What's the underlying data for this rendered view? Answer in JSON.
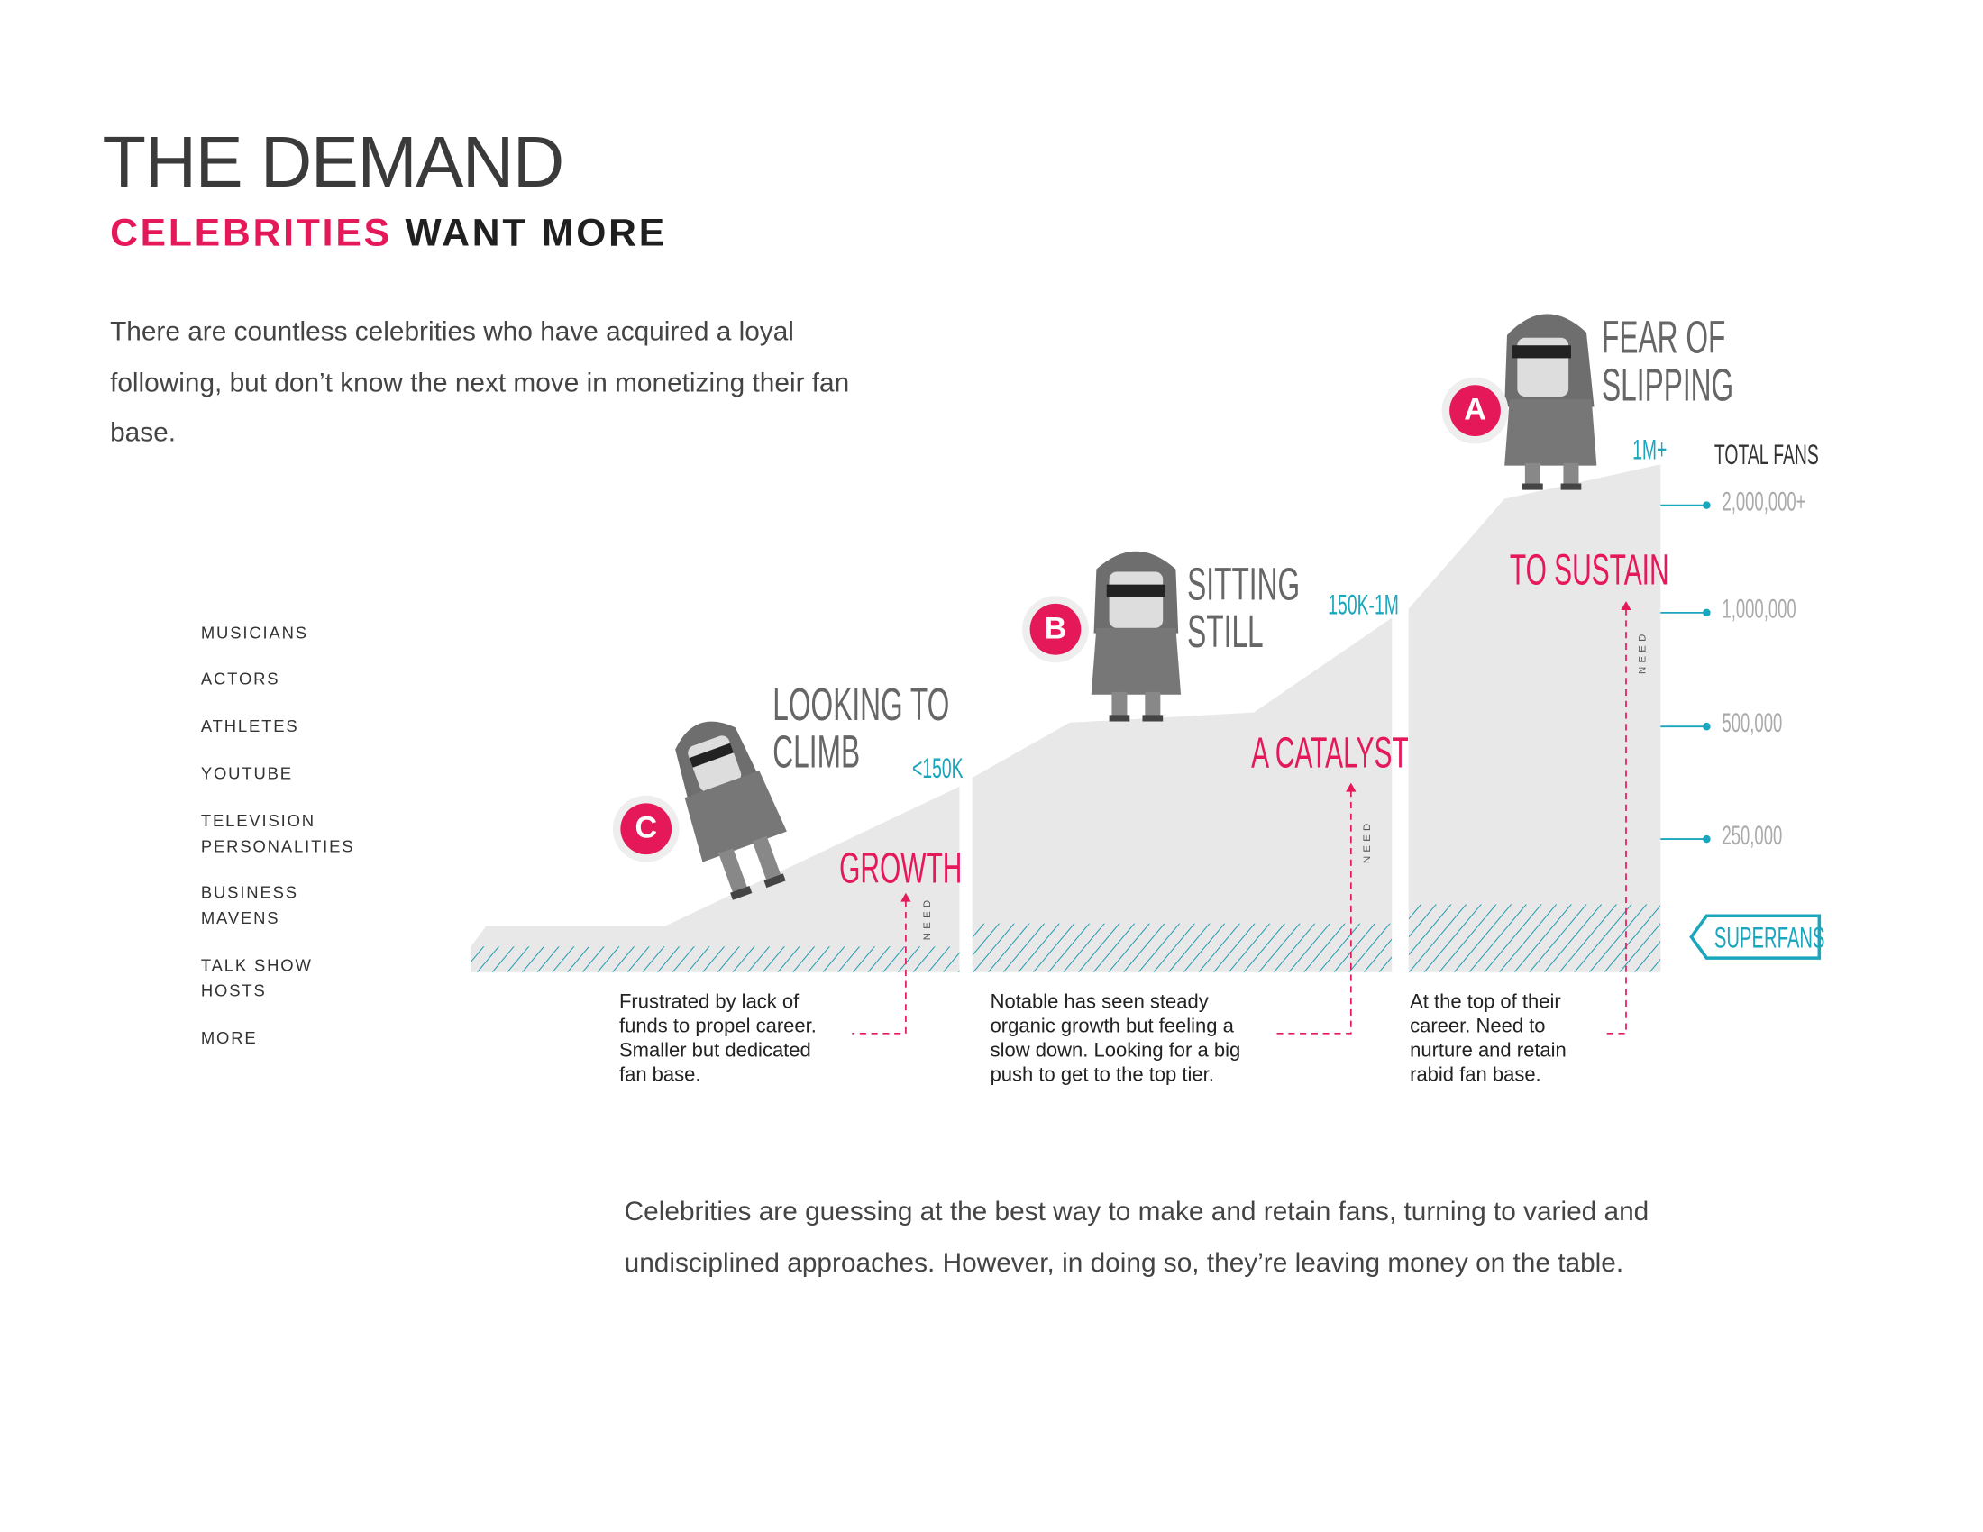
{
  "header": {
    "title": "THE DEMAND",
    "subtitle_highlight": "CELEBRITIES",
    "subtitle_rest": "WANT MORE"
  },
  "intro": "There are countless celebrities who have acquired a loyal following, but don’t know the next move in monetizing their fan base.",
  "categories": [
    {
      "line1": "MUSICIANS",
      "line2": ""
    },
    {
      "line1": "ACTORS",
      "line2": ""
    },
    {
      "line1": "ATHLETES",
      "line2": ""
    },
    {
      "line1": "YOUTUBE",
      "line2": ""
    },
    {
      "line1": "TELEVISION",
      "line2": "PERSONALITIES"
    },
    {
      "line1": "BUSINESS",
      "line2": "MAVENS"
    },
    {
      "line1": "TALK SHOW",
      "line2": "HOSTS"
    },
    {
      "line1": "MORE",
      "line2": ""
    }
  ],
  "tiers": [
    {
      "badge": "C",
      "status_line1": "LOOKING TO",
      "status_line2": "CLIMB",
      "range": "<150K",
      "need": "GROWTH",
      "need_label": "NEED",
      "description": "Frustrated by lack of funds to propel career. Smaller but dedicated fan base."
    },
    {
      "badge": "B",
      "status_line1": "SITTING",
      "status_line2": "STILL",
      "range": "150K-1M",
      "need": "A CATALYST",
      "need_label": "NEED",
      "description": "Notable has seen steady organic growth but feeling a slow down. Looking for a big push to get to the top tier."
    },
    {
      "badge": "A",
      "status_line1": "FEAR OF",
      "status_line2": "SLIPPING",
      "range": "1M+",
      "need": "TO SUSTAIN",
      "need_label": "NEED",
      "description": "At the top of their career. Need to nurture and retain rabid fan base."
    }
  ],
  "axis": {
    "title": "TOTAL FANS",
    "ticks": [
      "2,000,000+",
      "1,000,000",
      "500,000",
      "250,000"
    ],
    "superfans": "SUPERFANS"
  },
  "colors": {
    "accent": "#e5195a",
    "teal": "#1aa6bd",
    "mountain": "#e8e8e8"
  },
  "closing": "Celebrities are guessing at the best way to make and retain fans, turning to varied and undisciplined approaches. However, in doing so, they’re leaving money on the table."
}
